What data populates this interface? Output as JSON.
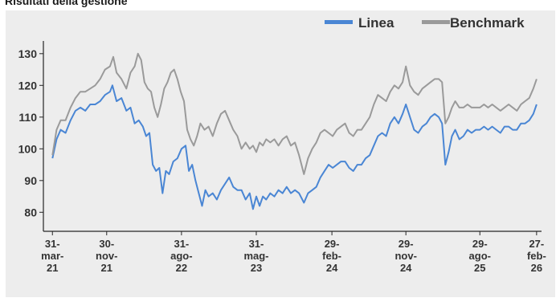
{
  "page": {
    "title": "Risultati della gestione"
  },
  "colors": {
    "panel": "#ededed",
    "axis": "#262626"
  },
  "chart_data": {
    "type": "line",
    "title": "Risultati della gestione",
    "xlabel": "",
    "ylabel": "",
    "ylim": [
      74,
      134
    ],
    "y_ticks": [
      80,
      90,
      100,
      110,
      120,
      130
    ],
    "grid": false,
    "legend_position": "top-right",
    "x_ticks": [
      {
        "t": 0.0,
        "label": [
          "31-",
          "mar-",
          "21"
        ]
      },
      {
        "t": 6.6,
        "label": [
          "30-",
          "nov-",
          "21"
        ]
      },
      {
        "t": 15.7,
        "label": [
          "31-",
          "ago-",
          "22"
        ]
      },
      {
        "t": 24.8,
        "label": [
          "31-",
          "mag-",
          "23"
        ]
      },
      {
        "t": 34.0,
        "label": [
          "29-",
          "feb-",
          "24"
        ]
      },
      {
        "t": 43.0,
        "label": [
          "29-",
          "nov-",
          "24"
        ]
      },
      {
        "t": 52.0,
        "label": [
          "29-",
          "ago-",
          "25"
        ]
      },
      {
        "t": 58.9,
        "label": [
          "27-",
          "feb-",
          "26"
        ]
      }
    ],
    "x_domain": [
      -1.1,
      59.5
    ],
    "series": [
      {
        "name": "Linea",
        "color": "#4a86d4",
        "points": [
          [
            0,
            97
          ],
          [
            0.5,
            103
          ],
          [
            1,
            106
          ],
          [
            1.6,
            105
          ],
          [
            2.2,
            109
          ],
          [
            2.8,
            112
          ],
          [
            3.4,
            113
          ],
          [
            4,
            112
          ],
          [
            4.6,
            114
          ],
          [
            5.2,
            114
          ],
          [
            5.8,
            115
          ],
          [
            6.4,
            117
          ],
          [
            7,
            118
          ],
          [
            7.3,
            120
          ],
          [
            7.8,
            115
          ],
          [
            8.4,
            116
          ],
          [
            9,
            112
          ],
          [
            9.5,
            113
          ],
          [
            10,
            108
          ],
          [
            10.5,
            109
          ],
          [
            11,
            107
          ],
          [
            11.4,
            104
          ],
          [
            11.8,
            105
          ],
          [
            12.2,
            95
          ],
          [
            12.6,
            93
          ],
          [
            13,
            94
          ],
          [
            13.4,
            86
          ],
          [
            13.8,
            93
          ],
          [
            14.2,
            92
          ],
          [
            14.7,
            96
          ],
          [
            15.2,
            97
          ],
          [
            15.7,
            100
          ],
          [
            16.2,
            101
          ],
          [
            16.6,
            93
          ],
          [
            17,
            95
          ],
          [
            17.4,
            90
          ],
          [
            17.8,
            86
          ],
          [
            18.2,
            82
          ],
          [
            18.6,
            87
          ],
          [
            19,
            85
          ],
          [
            19.5,
            86
          ],
          [
            20,
            84
          ],
          [
            20.5,
            87
          ],
          [
            21,
            89
          ],
          [
            21.5,
            91
          ],
          [
            22,
            88
          ],
          [
            22.5,
            87
          ],
          [
            23,
            87
          ],
          [
            23.5,
            84
          ],
          [
            24,
            86
          ],
          [
            24.4,
            81
          ],
          [
            24.8,
            85
          ],
          [
            25.2,
            82
          ],
          [
            25.6,
            85
          ],
          [
            26,
            84
          ],
          [
            26.5,
            86
          ],
          [
            27,
            85
          ],
          [
            27.5,
            87
          ],
          [
            28,
            86
          ],
          [
            28.5,
            88
          ],
          [
            29,
            86
          ],
          [
            29.5,
            87
          ],
          [
            30,
            86
          ],
          [
            30.6,
            83
          ],
          [
            31.1,
            86
          ],
          [
            31.6,
            87
          ],
          [
            32.1,
            88
          ],
          [
            32.6,
            91
          ],
          [
            33.1,
            93
          ],
          [
            33.6,
            95
          ],
          [
            34.1,
            94
          ],
          [
            34.6,
            95
          ],
          [
            35.1,
            96
          ],
          [
            35.6,
            96
          ],
          [
            36.1,
            94
          ],
          [
            36.6,
            93
          ],
          [
            37.1,
            95
          ],
          [
            37.6,
            95
          ],
          [
            38.1,
            97
          ],
          [
            38.6,
            98
          ],
          [
            39.1,
            101
          ],
          [
            39.6,
            104
          ],
          [
            40.1,
            105
          ],
          [
            40.6,
            104
          ],
          [
            41.1,
            108
          ],
          [
            41.6,
            110
          ],
          [
            42.1,
            108
          ],
          [
            42.6,
            111
          ],
          [
            43,
            114
          ],
          [
            43.5,
            110
          ],
          [
            44,
            106
          ],
          [
            44.5,
            105
          ],
          [
            45,
            107
          ],
          [
            45.5,
            108
          ],
          [
            46,
            110
          ],
          [
            46.5,
            111
          ],
          [
            47,
            110
          ],
          [
            47.4,
            108
          ],
          [
            47.8,
            95
          ],
          [
            48.2,
            99
          ],
          [
            48.6,
            104
          ],
          [
            49,
            106
          ],
          [
            49.5,
            103
          ],
          [
            50,
            104
          ],
          [
            50.5,
            106
          ],
          [
            51,
            105
          ],
          [
            51.5,
            106
          ],
          [
            52,
            106
          ],
          [
            52.5,
            107
          ],
          [
            53,
            106
          ],
          [
            53.5,
            107
          ],
          [
            54,
            106
          ],
          [
            54.5,
            105
          ],
          [
            55,
            107
          ],
          [
            55.5,
            107
          ],
          [
            56,
            106
          ],
          [
            56.5,
            106
          ],
          [
            57,
            108
          ],
          [
            57.5,
            108
          ],
          [
            58,
            109
          ],
          [
            58.5,
            111
          ],
          [
            58.9,
            114
          ]
        ]
      },
      {
        "name": "Benchmark",
        "color": "#9a9a9a",
        "points": [
          [
            0,
            98
          ],
          [
            0.5,
            106
          ],
          [
            1,
            109
          ],
          [
            1.6,
            109
          ],
          [
            2.2,
            113
          ],
          [
            2.8,
            116
          ],
          [
            3.4,
            118
          ],
          [
            4,
            118
          ],
          [
            4.6,
            119
          ],
          [
            5.2,
            120
          ],
          [
            5.8,
            122
          ],
          [
            6.4,
            125
          ],
          [
            7,
            126
          ],
          [
            7.4,
            129
          ],
          [
            7.8,
            124
          ],
          [
            8.4,
            122
          ],
          [
            9,
            119
          ],
          [
            9.5,
            124
          ],
          [
            10,
            126
          ],
          [
            10.4,
            130
          ],
          [
            10.8,
            128
          ],
          [
            11.2,
            121
          ],
          [
            11.6,
            119
          ],
          [
            12,
            118
          ],
          [
            12.4,
            113
          ],
          [
            12.8,
            110
          ],
          [
            13.2,
            114
          ],
          [
            13.6,
            119
          ],
          [
            14,
            121
          ],
          [
            14.4,
            124
          ],
          [
            14.8,
            125
          ],
          [
            15.2,
            122
          ],
          [
            15.6,
            118
          ],
          [
            16,
            115
          ],
          [
            16.4,
            106
          ],
          [
            16.8,
            103
          ],
          [
            17.2,
            101
          ],
          [
            17.6,
            104
          ],
          [
            18,
            108
          ],
          [
            18.5,
            106
          ],
          [
            19,
            107
          ],
          [
            19.5,
            104
          ],
          [
            20,
            108
          ],
          [
            20.5,
            111
          ],
          [
            21,
            112
          ],
          [
            21.5,
            109
          ],
          [
            22,
            106
          ],
          [
            22.5,
            104
          ],
          [
            23,
            100
          ],
          [
            23.5,
            102
          ],
          [
            24,
            100
          ],
          [
            24.4,
            101
          ],
          [
            24.8,
            99
          ],
          [
            25.2,
            102
          ],
          [
            25.6,
            101
          ],
          [
            26,
            103
          ],
          [
            26.5,
            102
          ],
          [
            27,
            103
          ],
          [
            27.5,
            101
          ],
          [
            28,
            103
          ],
          [
            28.5,
            104
          ],
          [
            29,
            101
          ],
          [
            29.5,
            102
          ],
          [
            30,
            98
          ],
          [
            30.6,
            92
          ],
          [
            31.1,
            97
          ],
          [
            31.6,
            100
          ],
          [
            32.1,
            102
          ],
          [
            32.6,
            105
          ],
          [
            33.1,
            106
          ],
          [
            33.6,
            105
          ],
          [
            34.1,
            104
          ],
          [
            34.6,
            106
          ],
          [
            35.1,
            107
          ],
          [
            35.6,
            108
          ],
          [
            36.1,
            105
          ],
          [
            36.6,
            104
          ],
          [
            37.1,
            106
          ],
          [
            37.6,
            106
          ],
          [
            38.1,
            108
          ],
          [
            38.6,
            110
          ],
          [
            39.1,
            114
          ],
          [
            39.6,
            117
          ],
          [
            40.1,
            116
          ],
          [
            40.6,
            115
          ],
          [
            41.1,
            118
          ],
          [
            41.6,
            120
          ],
          [
            42.1,
            119
          ],
          [
            42.6,
            121
          ],
          [
            43,
            126
          ],
          [
            43.5,
            120
          ],
          [
            44,
            118
          ],
          [
            44.5,
            117
          ],
          [
            45,
            119
          ],
          [
            45.5,
            120
          ],
          [
            46,
            121
          ],
          [
            46.5,
            122
          ],
          [
            47,
            122
          ],
          [
            47.4,
            121
          ],
          [
            47.8,
            108
          ],
          [
            48.2,
            110
          ],
          [
            48.6,
            113
          ],
          [
            49,
            115
          ],
          [
            49.5,
            113
          ],
          [
            50,
            113
          ],
          [
            50.5,
            114
          ],
          [
            51,
            113
          ],
          [
            51.5,
            113
          ],
          [
            52,
            113
          ],
          [
            52.5,
            114
          ],
          [
            53,
            113
          ],
          [
            53.5,
            114
          ],
          [
            54,
            113
          ],
          [
            54.5,
            112
          ],
          [
            55,
            113
          ],
          [
            55.5,
            114
          ],
          [
            56,
            113
          ],
          [
            56.5,
            112
          ],
          [
            57,
            114
          ],
          [
            57.5,
            115
          ],
          [
            58,
            116
          ],
          [
            58.5,
            119
          ],
          [
            58.9,
            122
          ]
        ]
      }
    ]
  }
}
